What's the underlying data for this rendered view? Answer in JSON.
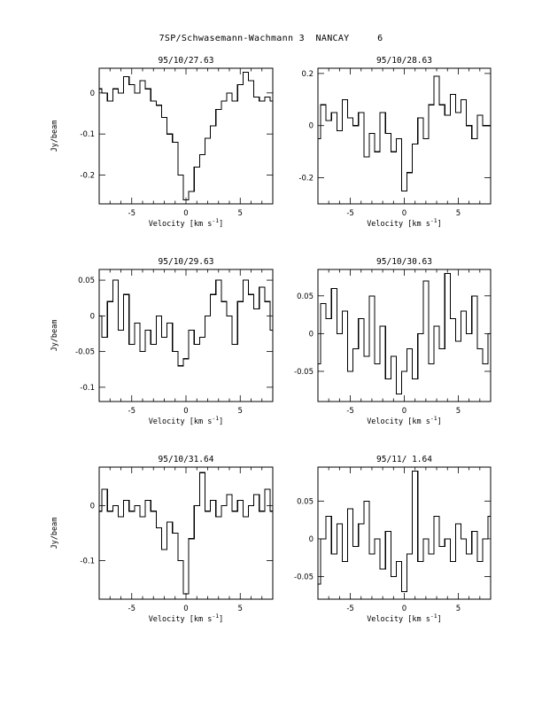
{
  "page": {
    "title": "7SP/Schwasemann-Wachmann 3  NANCAY     6"
  },
  "chart_data": [
    {
      "type": "line",
      "title": "95/10/27.63",
      "xlabel": "Velocity [km s",
      "xlabel_sup": "-1",
      "xlabel_end": "]",
      "ylabel": "Jy/beam",
      "xlim": [
        -8,
        8
      ],
      "ylim": [
        -0.27,
        0.06
      ],
      "xticks": [
        -5,
        0,
        5
      ],
      "xtick_labels": [
        "-5",
        "0",
        "5"
      ],
      "yticks": [
        0,
        -0.1,
        -0.2
      ],
      "ytick_labels": [
        "0",
        "-0.1",
        "-0.2"
      ],
      "series": [
        {
          "x": [
            -8,
            -7.5,
            -7,
            -6.5,
            -6,
            -5.5,
            -5,
            -4.5,
            -4,
            -3.5,
            -3,
            -2.5,
            -2,
            -1.5,
            -1,
            -0.5,
            0,
            0.5,
            1,
            1.5,
            2,
            2.5,
            3,
            3.5,
            4,
            4.5,
            5,
            5.5,
            6,
            6.5,
            7,
            7.5,
            8
          ],
          "y": [
            0.01,
            0.0,
            -0.02,
            0.01,
            0.0,
            0.04,
            0.02,
            0.0,
            0.03,
            0.01,
            -0.02,
            -0.03,
            -0.06,
            -0.1,
            -0.12,
            -0.2,
            -0.26,
            -0.24,
            -0.18,
            -0.15,
            -0.11,
            -0.08,
            -0.04,
            -0.02,
            0.0,
            -0.02,
            0.02,
            0.05,
            0.03,
            -0.01,
            -0.02,
            -0.01,
            -0.02
          ]
        }
      ]
    },
    {
      "type": "line",
      "title": "95/10/28.63",
      "xlabel": "Velocity [km s",
      "xlabel_sup": "-1",
      "xlabel_end": "]",
      "ylabel": "",
      "xlim": [
        -8,
        8
      ],
      "ylim": [
        -0.3,
        0.22
      ],
      "xticks": [
        -5,
        0,
        5
      ],
      "xtick_labels": [
        "-5",
        "0",
        "5"
      ],
      "yticks": [
        0.2,
        0,
        -0.2
      ],
      "ytick_labels": [
        "0.2",
        "0",
        "-0.2"
      ],
      "series": [
        {
          "x": [
            -8,
            -7.5,
            -7,
            -6.5,
            -6,
            -5.5,
            -5,
            -4.5,
            -4,
            -3.5,
            -3,
            -2.5,
            -2,
            -1.5,
            -1,
            -0.5,
            0,
            0.5,
            1,
            1.5,
            2,
            2.5,
            3,
            3.5,
            4,
            4.5,
            5,
            5.5,
            6,
            6.5,
            7,
            7.5,
            8
          ],
          "y": [
            -0.05,
            0.08,
            0.02,
            0.05,
            -0.02,
            0.1,
            0.03,
            0.0,
            0.05,
            -0.12,
            -0.03,
            -0.1,
            0.05,
            -0.03,
            -0.1,
            -0.05,
            -0.25,
            -0.18,
            -0.07,
            0.03,
            -0.05,
            0.08,
            0.19,
            0.08,
            0.04,
            0.12,
            0.05,
            0.1,
            0.0,
            -0.05,
            0.04,
            0.0,
            0.0
          ]
        }
      ]
    },
    {
      "type": "line",
      "title": "95/10/29.63",
      "xlabel": "Velocity [km s",
      "xlabel_sup": "-1",
      "xlabel_end": "]",
      "ylabel": "Jy/beam",
      "xlim": [
        -8,
        8
      ],
      "ylim": [
        -0.12,
        0.065
      ],
      "xticks": [
        -5,
        0,
        5
      ],
      "xtick_labels": [
        "-5",
        "0",
        "5"
      ],
      "yticks": [
        0.05,
        0,
        -0.05,
        -0.1
      ],
      "ytick_labels": [
        "0.05",
        "0",
        "-0.05",
        "-0.1"
      ],
      "series": [
        {
          "x": [
            -8,
            -7.5,
            -7,
            -6.5,
            -6,
            -5.5,
            -5,
            -4.5,
            -4,
            -3.5,
            -3,
            -2.5,
            -2,
            -1.5,
            -1,
            -0.5,
            0,
            0.5,
            1,
            1.5,
            2,
            2.5,
            3,
            3.5,
            4,
            4.5,
            5,
            5.5,
            6,
            6.5,
            7,
            7.5,
            8
          ],
          "y": [
            0.0,
            -0.03,
            0.02,
            0.05,
            -0.02,
            0.03,
            -0.04,
            -0.01,
            -0.05,
            -0.02,
            -0.04,
            0.0,
            -0.03,
            -0.01,
            -0.05,
            -0.07,
            -0.06,
            -0.02,
            -0.04,
            -0.03,
            0.0,
            0.03,
            0.05,
            0.02,
            0.0,
            -0.04,
            0.02,
            0.05,
            0.03,
            0.01,
            0.04,
            0.02,
            -0.02
          ]
        }
      ]
    },
    {
      "type": "line",
      "title": "95/10/30.63",
      "xlabel": "Velocity [km s",
      "xlabel_sup": "-1",
      "xlabel_end": "]",
      "ylabel": "",
      "xlim": [
        -8,
        8
      ],
      "ylim": [
        -0.09,
        0.085
      ],
      "xticks": [
        -5,
        0,
        5
      ],
      "xtick_labels": [
        "-5",
        "0",
        "5"
      ],
      "yticks": [
        0.05,
        0,
        -0.05
      ],
      "ytick_labels": [
        "0.05",
        "0",
        "-0.05"
      ],
      "series": [
        {
          "x": [
            -8,
            -7.5,
            -7,
            -6.5,
            -6,
            -5.5,
            -5,
            -4.5,
            -4,
            -3.5,
            -3,
            -2.5,
            -2,
            -1.5,
            -1,
            -0.5,
            0,
            0.5,
            1,
            1.5,
            2,
            2.5,
            3,
            3.5,
            4,
            4.5,
            5,
            5.5,
            6,
            6.5,
            7,
            7.5,
            8
          ],
          "y": [
            -0.04,
            0.04,
            0.02,
            0.06,
            0.0,
            0.03,
            -0.05,
            -0.02,
            0.02,
            -0.03,
            0.05,
            -0.04,
            0.01,
            -0.06,
            -0.03,
            -0.08,
            -0.05,
            -0.02,
            -0.06,
            0.0,
            0.07,
            -0.04,
            0.01,
            -0.02,
            0.08,
            0.02,
            -0.01,
            0.03,
            0.0,
            0.05,
            -0.02,
            -0.04,
            0.0
          ]
        }
      ]
    },
    {
      "type": "line",
      "title": "95/10/31.64",
      "xlabel": "Velocity [km s",
      "xlabel_sup": "-1",
      "xlabel_end": "]",
      "ylabel": "Jy/beam",
      "xlim": [
        -8,
        8
      ],
      "ylim": [
        -0.17,
        0.07
      ],
      "xticks": [
        -5,
        0,
        5
      ],
      "xtick_labels": [
        "-5",
        "0",
        "5"
      ],
      "yticks": [
        0,
        -0.1
      ],
      "ytick_labels": [
        "0",
        "-0.1"
      ],
      "series": [
        {
          "x": [
            -8,
            -7.5,
            -7,
            -6.5,
            -6,
            -5.5,
            -5,
            -4.5,
            -4,
            -3.5,
            -3,
            -2.5,
            -2,
            -1.5,
            -1,
            -0.5,
            0,
            0.5,
            1,
            1.5,
            2,
            2.5,
            3,
            3.5,
            4,
            4.5,
            5,
            5.5,
            6,
            6.5,
            7,
            7.5,
            8
          ],
          "y": [
            -0.01,
            0.03,
            -0.01,
            0.0,
            -0.02,
            0.01,
            -0.01,
            0.0,
            -0.02,
            0.01,
            -0.01,
            -0.04,
            -0.08,
            -0.03,
            -0.05,
            -0.1,
            -0.16,
            -0.06,
            0.0,
            0.06,
            -0.01,
            0.01,
            -0.02,
            0.0,
            0.02,
            -0.01,
            0.01,
            -0.02,
            0.0,
            0.02,
            -0.01,
            0.03,
            -0.01
          ]
        }
      ]
    },
    {
      "type": "line",
      "title": "95/11/ 1.64",
      "xlabel": "Velocity [km s",
      "xlabel_sup": "-1",
      "xlabel_end": "]",
      "ylabel": "",
      "xlim": [
        -8,
        8
      ],
      "ylim": [
        -0.08,
        0.095
      ],
      "xticks": [
        -5,
        0,
        5
      ],
      "xtick_labels": [
        "-5",
        "0",
        "5"
      ],
      "yticks": [
        0.05,
        0,
        -0.05
      ],
      "ytick_labels": [
        "0.05",
        "0",
        "-0.05"
      ],
      "series": [
        {
          "x": [
            -8,
            -7.5,
            -7,
            -6.5,
            -6,
            -5.5,
            -5,
            -4.5,
            -4,
            -3.5,
            -3,
            -2.5,
            -2,
            -1.5,
            -1,
            -0.5,
            0,
            0.5,
            1,
            1.5,
            2,
            2.5,
            3,
            3.5,
            4,
            4.5,
            5,
            5.5,
            6,
            6.5,
            7,
            7.5,
            8
          ],
          "y": [
            -0.06,
            0.0,
            0.03,
            -0.02,
            0.02,
            -0.03,
            0.04,
            -0.01,
            0.02,
            0.05,
            -0.02,
            0.0,
            -0.04,
            0.01,
            -0.05,
            -0.03,
            -0.07,
            -0.02,
            0.09,
            -0.03,
            0.0,
            -0.02,
            0.03,
            -0.01,
            0.0,
            -0.03,
            0.02,
            0.0,
            -0.02,
            0.01,
            -0.03,
            0.0,
            0.03
          ]
        }
      ]
    }
  ]
}
